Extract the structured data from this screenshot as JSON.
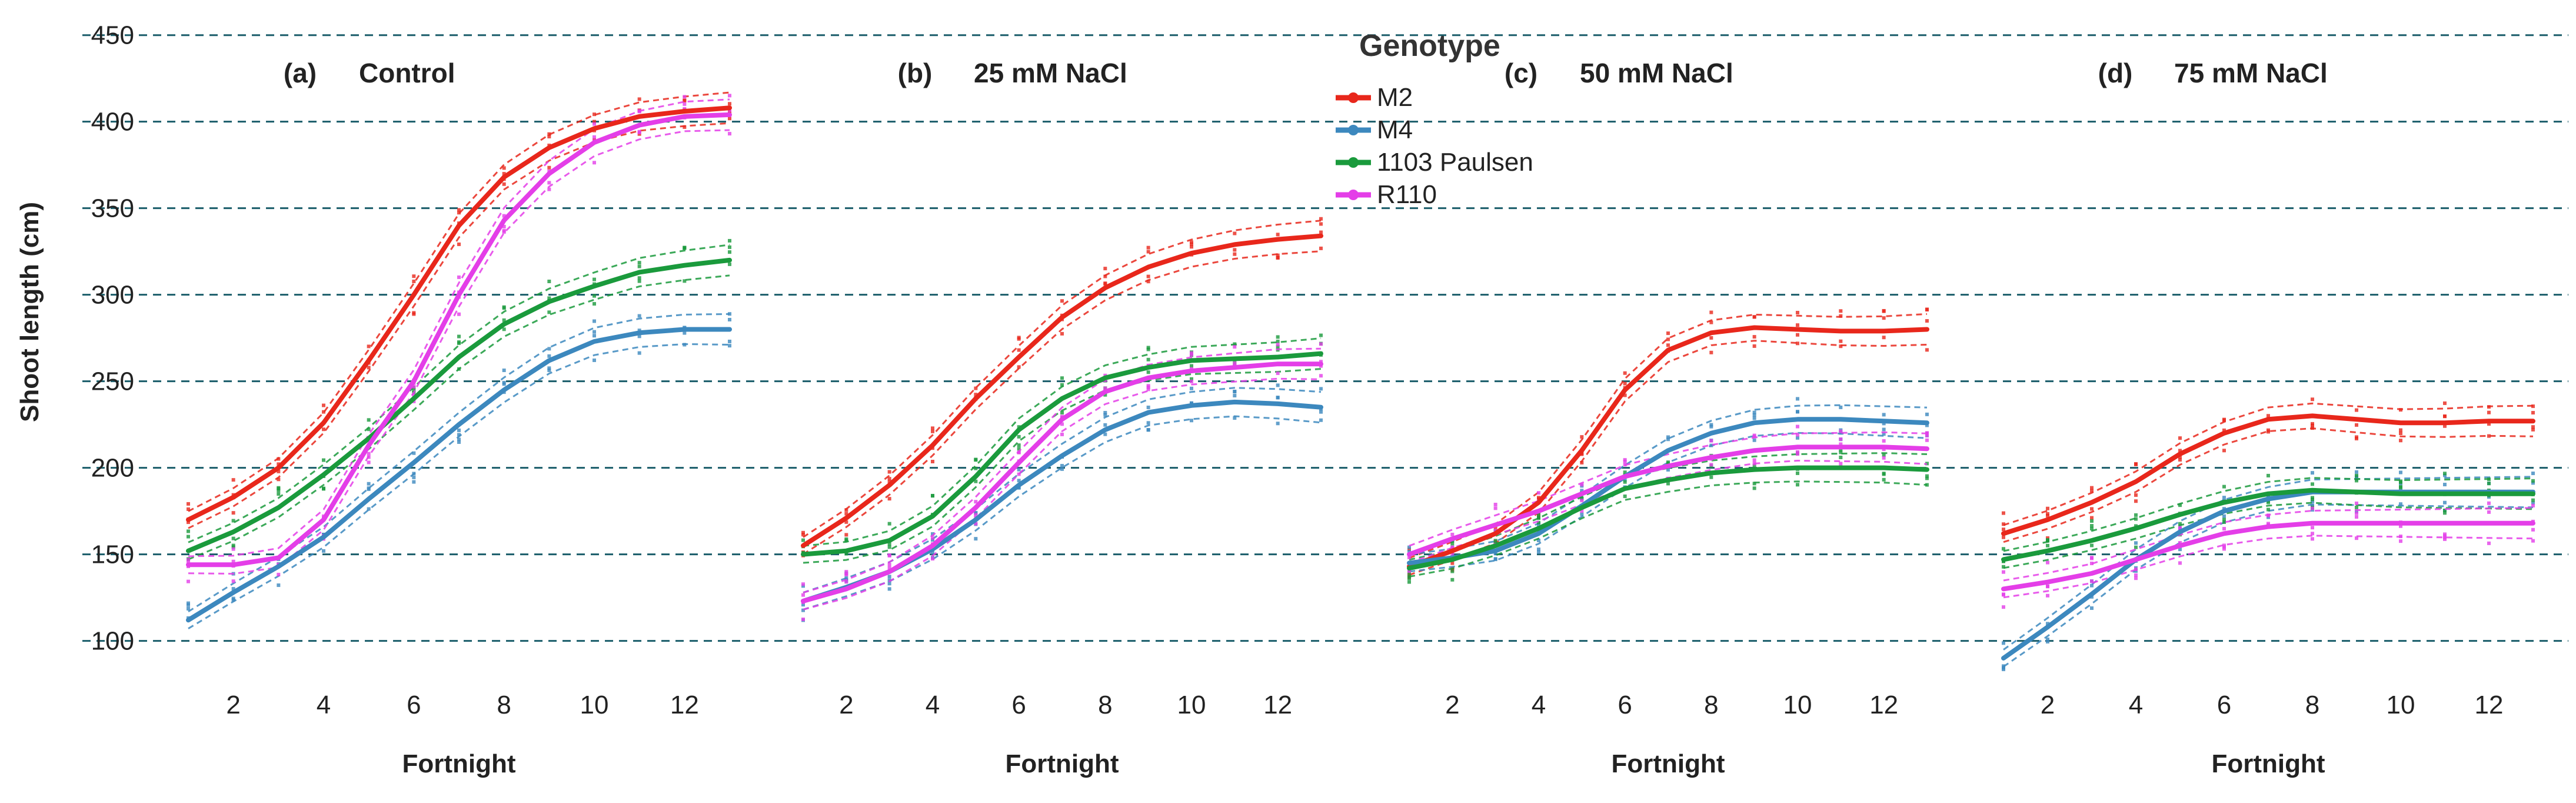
{
  "chart_data": {
    "type": "line",
    "ylabel": "Shoot length (cm)",
    "xlabel": "Fortnight",
    "ylim": [
      90,
      455
    ],
    "xlim": [
      1,
      13
    ],
    "yticks": [
      100,
      150,
      200,
      250,
      300,
      350,
      400,
      450
    ],
    "xticks": [
      2,
      4,
      6,
      8,
      10,
      12
    ],
    "grid": "dashed horizontal",
    "colors": {
      "M2": "#e8271b",
      "M4": "#3c88be",
      "1103 Paulsen": "#1a9a3c",
      "R110": "#e43ee8",
      "grid": "#1a5d6a"
    },
    "legend": {
      "title": "Genotype",
      "placement": "top-center",
      "entries": [
        "M2",
        "M4",
        "1103 Paulsen",
        "R110"
      ]
    },
    "panels": [
      {
        "tag": "(a)",
        "title": "Control",
        "x": [
          1,
          2,
          3,
          4,
          5,
          6,
          7,
          8,
          9,
          10,
          11,
          12,
          13
        ],
        "series": [
          {
            "name": "M2",
            "values": [
              170,
              183,
              200,
              226,
              262,
              300,
              340,
              368,
              385,
              396,
              403,
              406,
              408
            ]
          },
          {
            "name": "M4",
            "values": [
              112,
              128,
              143,
              160,
              182,
              203,
              225,
              245,
              262,
              273,
              278,
              280,
              280
            ]
          },
          {
            "name": "1103 Paulsen",
            "values": [
              152,
              163,
              177,
              196,
              217,
              240,
              264,
              283,
              296,
              305,
              313,
              317,
              320
            ]
          },
          {
            "name": "R110",
            "values": [
              144,
              144,
              148,
              170,
              213,
              250,
              300,
              343,
              370,
              388,
              398,
              403,
              404
            ]
          }
        ]
      },
      {
        "tag": "(b)",
        "title": "25 mM NaCl",
        "x": [
          1,
          2,
          3,
          4,
          5,
          6,
          7,
          8,
          9,
          10,
          11,
          12,
          13
        ],
        "series": [
          {
            "name": "M2",
            "values": [
              155,
              171,
              190,
              213,
              240,
              264,
              287,
              304,
              316,
              324,
              329,
              332,
              334
            ]
          },
          {
            "name": "M4",
            "values": [
              123,
              131,
              140,
              153,
              170,
              190,
              207,
              222,
              232,
              236,
              238,
              237,
              235
            ]
          },
          {
            "name": "1103 Paulsen",
            "values": [
              150,
              152,
              158,
              172,
              195,
              222,
              240,
              252,
              258,
              262,
              263,
              264,
              266
            ]
          },
          {
            "name": "R110",
            "values": [
              123,
              130,
              140,
              155,
              177,
              203,
              228,
              244,
              252,
              256,
              258,
              260,
              260
            ]
          }
        ]
      },
      {
        "tag": "(c)",
        "title": "50 mM NaCl",
        "x": [
          1,
          2,
          3,
          4,
          5,
          6,
          7,
          8,
          9,
          10,
          11,
          12,
          13
        ],
        "series": [
          {
            "name": "M2",
            "values": [
              143,
              152,
              162,
              180,
              210,
              245,
              268,
              278,
              281,
              280,
              279,
              279,
              280
            ]
          },
          {
            "name": "M4",
            "values": [
              145,
              148,
              152,
              162,
              178,
              195,
              210,
              220,
              226,
              228,
              228,
              227,
              226
            ]
          },
          {
            "name": "1103 Paulsen",
            "values": [
              142,
              147,
              155,
              165,
              177,
              188,
              193,
              197,
              199,
              200,
              200,
              200,
              199
            ]
          },
          {
            "name": "R110",
            "values": [
              150,
              159,
              167,
              175,
              185,
              195,
              201,
              206,
              210,
              212,
              212,
              212,
              211
            ]
          }
        ]
      },
      {
        "tag": "(d)",
        "title": "75 mM NaCl",
        "x": [
          1,
          2,
          3,
          4,
          5,
          6,
          7,
          8,
          9,
          10,
          11,
          12,
          13
        ],
        "series": [
          {
            "name": "M2",
            "values": [
              162,
              170,
              180,
              192,
              208,
              220,
              228,
              230,
              228,
              226,
              226,
              227,
              227
            ]
          },
          {
            "name": "M4",
            "values": [
              90,
              108,
              127,
              147,
              163,
              175,
              182,
              186,
              186,
              186,
              186,
              186,
              186
            ]
          },
          {
            "name": "1103 Paulsen",
            "values": [
              147,
              152,
              158,
              165,
              173,
              180,
              185,
              187,
              186,
              185,
              185,
              185,
              185
            ]
          },
          {
            "name": "R110",
            "values": [
              130,
              134,
              139,
              147,
              155,
              162,
              166,
              168,
              168,
              168,
              168,
              168,
              168
            ]
          }
        ]
      }
    ]
  }
}
